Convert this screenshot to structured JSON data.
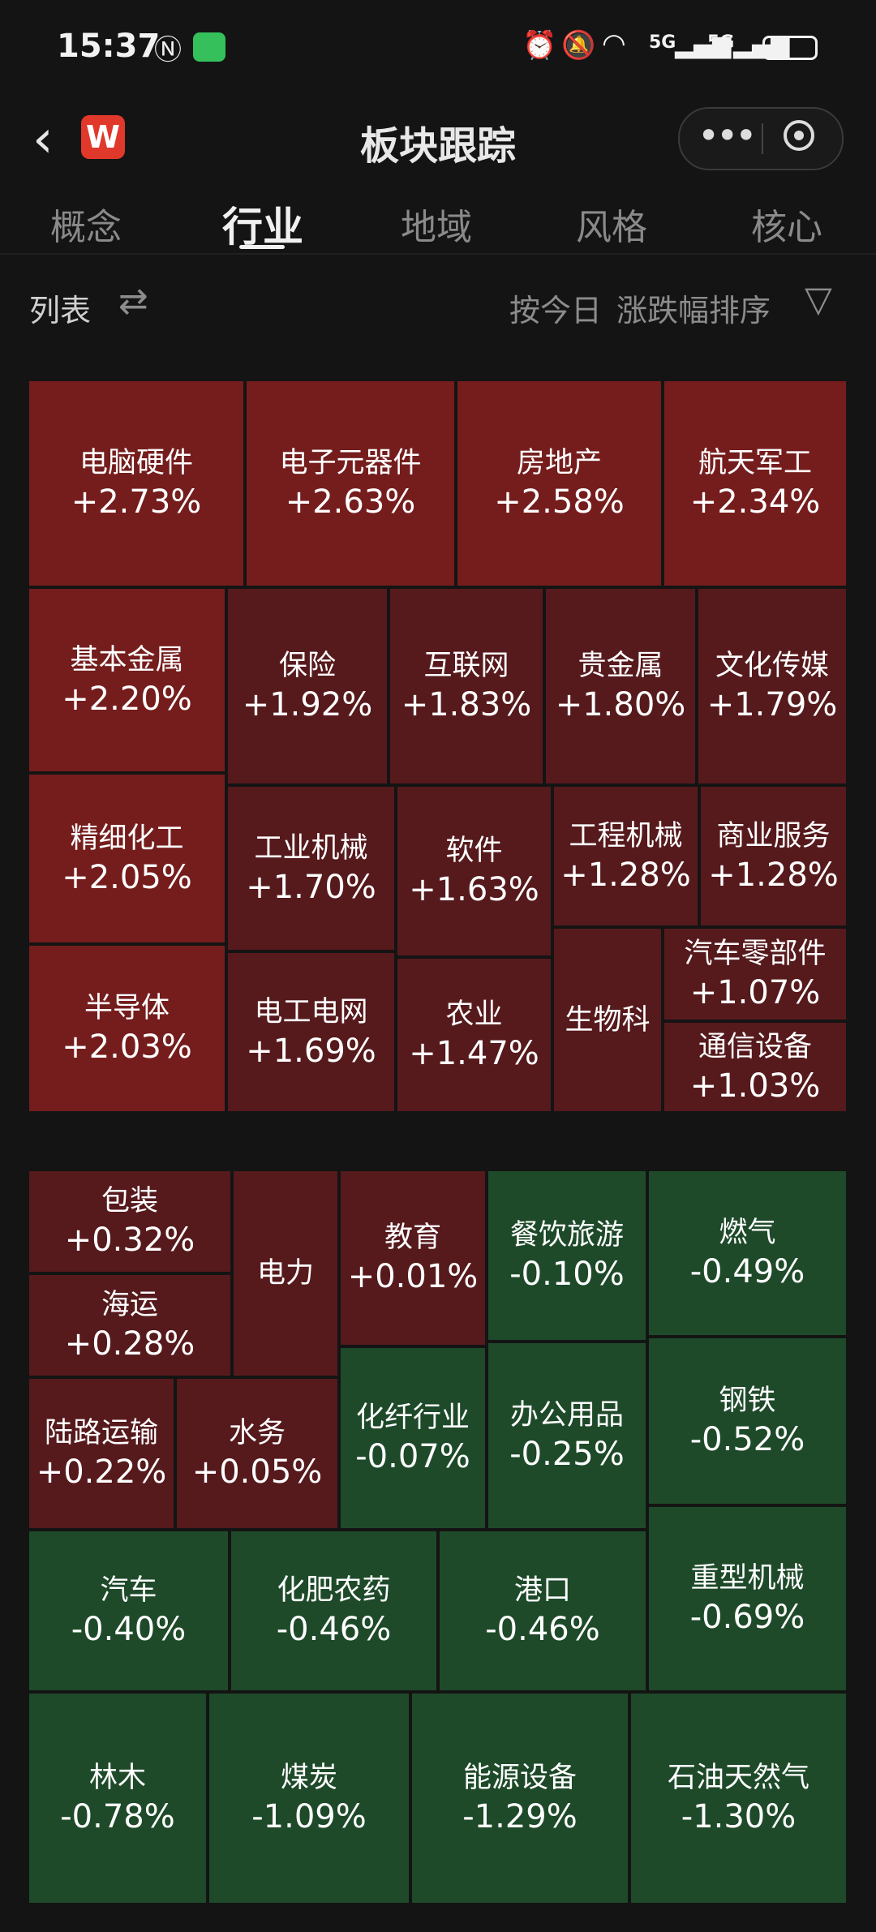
{
  "status": {
    "time": "15:37",
    "signal1": "5G",
    "signal2": "5G"
  },
  "header": {
    "title": "板块跟踪",
    "logo": "W"
  },
  "tabs": [
    {
      "label": "概念"
    },
    {
      "label": "行业"
    },
    {
      "label": "地域"
    },
    {
      "label": "风格"
    },
    {
      "label": "核心"
    }
  ],
  "toolbar": {
    "list_label": "列表",
    "sort_prefix": "按今日",
    "sort_label": "涨跌幅排序"
  },
  "colors": {
    "up_strong": "#751d1d",
    "up": "#561a1d",
    "down": "#1e4a2a",
    "background": "#141414"
  },
  "sectors_up": [
    {
      "name": "电脑硬件",
      "change": "+2.73%"
    },
    {
      "name": "电子元器件",
      "change": "+2.63%"
    },
    {
      "name": "房地产",
      "change": "+2.58%"
    },
    {
      "name": "航天军工",
      "change": "+2.34%"
    },
    {
      "name": "基本金属",
      "change": "+2.20%"
    },
    {
      "name": "保险",
      "change": "+1.92%"
    },
    {
      "name": "互联网",
      "change": "+1.83%"
    },
    {
      "name": "贵金属",
      "change": "+1.80%"
    },
    {
      "name": "文化传媒",
      "change": "+1.79%"
    },
    {
      "name": "精细化工",
      "change": "+2.05%"
    },
    {
      "name": "工业机械",
      "change": "+1.70%"
    },
    {
      "name": "软件",
      "change": "+1.63%"
    },
    {
      "name": "工程机械",
      "change": "+1.28%"
    },
    {
      "name": "商业服务",
      "change": "+1.28%"
    },
    {
      "name": "汽车零部件",
      "change": "+1.07%"
    },
    {
      "name": "半导体",
      "change": "+2.03%"
    },
    {
      "name": "电工电网",
      "change": "+1.69%"
    },
    {
      "name": "农业",
      "change": "+1.47%"
    },
    {
      "name": "生物科",
      "change": ""
    },
    {
      "name": "通信设备",
      "change": "+1.03%"
    }
  ],
  "sectors_mixed": [
    {
      "name": "包装",
      "change": "+0.32%"
    },
    {
      "name": "海运",
      "change": "+0.28%"
    },
    {
      "name": "电力",
      "change": ""
    },
    {
      "name": "教育",
      "change": "+0.01%"
    },
    {
      "name": "餐饮旅游",
      "change": "-0.10%"
    },
    {
      "name": "燃气",
      "change": "-0.49%"
    },
    {
      "name": "陆路运输",
      "change": "+0.22%"
    },
    {
      "name": "水务",
      "change": "+0.05%"
    },
    {
      "name": "化纤行业",
      "change": "-0.07%"
    },
    {
      "name": "办公用品",
      "change": "-0.25%"
    },
    {
      "name": "钢铁",
      "change": "-0.52%"
    },
    {
      "name": "汽车",
      "change": "-0.40%"
    },
    {
      "name": "化肥农药",
      "change": "-0.46%"
    },
    {
      "name": "港口",
      "change": "-0.46%"
    },
    {
      "name": "重型机械",
      "change": "-0.69%"
    },
    {
      "name": "林木",
      "change": "-0.78%"
    },
    {
      "name": "煤炭",
      "change": "-1.09%"
    },
    {
      "name": "能源设备",
      "change": "-1.29%"
    },
    {
      "name": "石油天然气",
      "change": "-1.30%"
    }
  ]
}
